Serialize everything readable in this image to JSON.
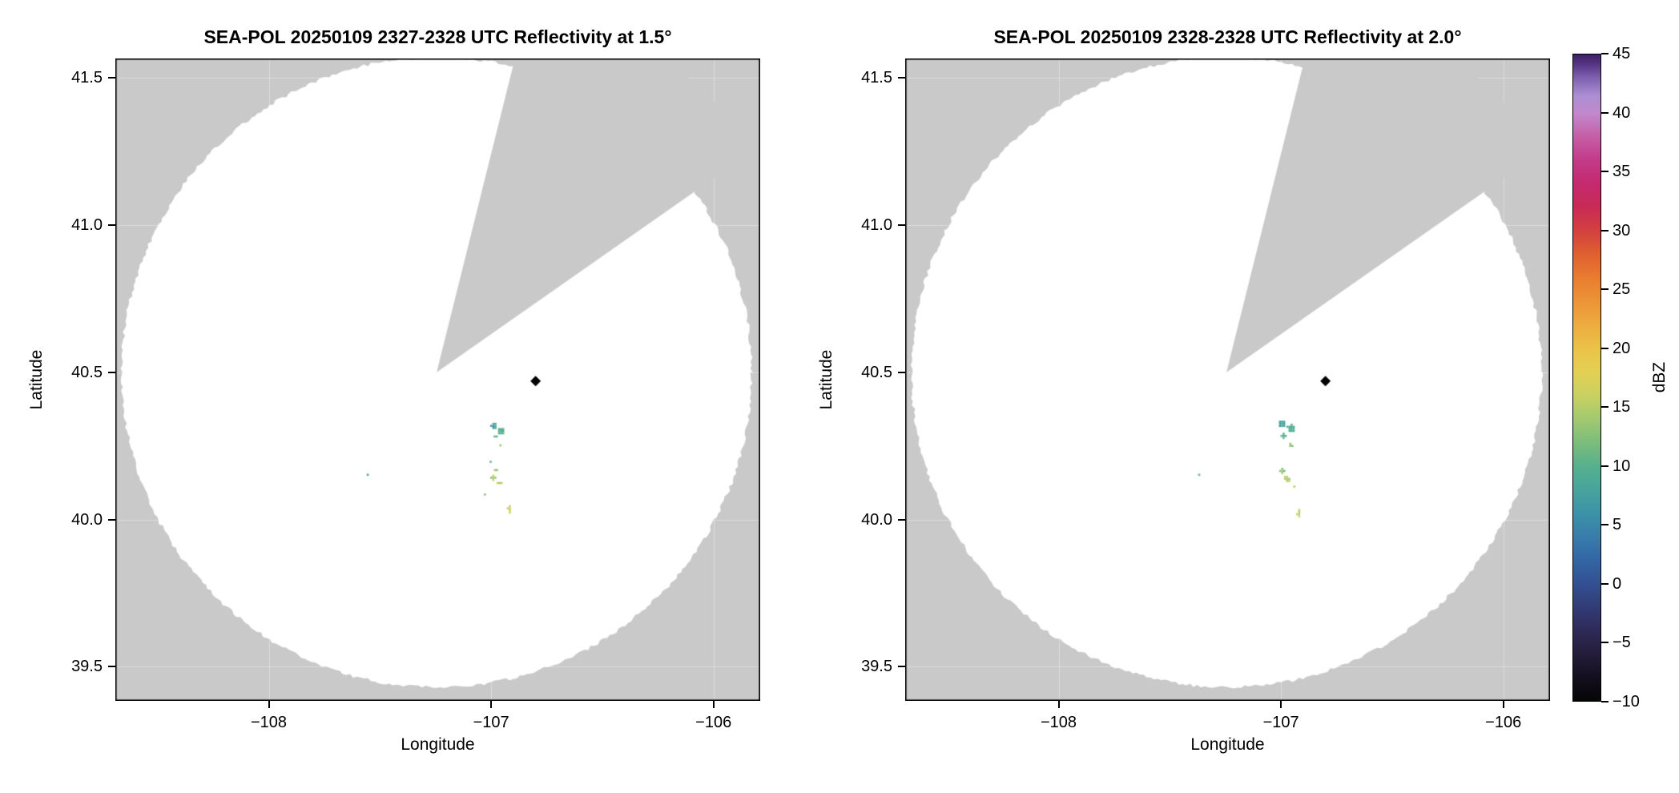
{
  "figure": {
    "background": "#ffffff",
    "panel_bg": "#c9c9c9",
    "coverage_color": "#ffffff",
    "text_color": "#000000"
  },
  "colorbar": {
    "label": "dBZ",
    "min": -10,
    "max": 45,
    "ticks": [
      {
        "v": 45,
        "label": "45"
      },
      {
        "v": 40,
        "label": "40"
      },
      {
        "v": 35,
        "label": "35"
      },
      {
        "v": 30,
        "label": "30"
      },
      {
        "v": 25,
        "label": "25"
      },
      {
        "v": 20,
        "label": "20"
      },
      {
        "v": 15,
        "label": "15"
      },
      {
        "v": 10,
        "label": "10"
      },
      {
        "v": 5,
        "label": "5"
      },
      {
        "v": 0,
        "label": "0"
      },
      {
        "v": -5,
        "label": "−5"
      },
      {
        "v": -10,
        "label": "−10"
      }
    ],
    "stops": [
      {
        "v": -10,
        "c": "#050505"
      },
      {
        "v": -8,
        "c": "#140f1e"
      },
      {
        "v": -6,
        "c": "#241d3a"
      },
      {
        "v": -4,
        "c": "#2e2a58"
      },
      {
        "v": -2,
        "c": "#323c77"
      },
      {
        "v": 0,
        "c": "#335093"
      },
      {
        "v": 2,
        "c": "#3366a5"
      },
      {
        "v": 4,
        "c": "#377dab"
      },
      {
        "v": 6,
        "c": "#3d92a8"
      },
      {
        "v": 8,
        "c": "#47a49c"
      },
      {
        "v": 10,
        "c": "#57b08d"
      },
      {
        "v": 12,
        "c": "#7cbd7c"
      },
      {
        "v": 14,
        "c": "#a3c96f"
      },
      {
        "v": 16,
        "c": "#c9d162"
      },
      {
        "v": 18,
        "c": "#e3d054"
      },
      {
        "v": 20,
        "c": "#ecc248"
      },
      {
        "v": 22,
        "c": "#edab3f"
      },
      {
        "v": 24,
        "c": "#ec9437"
      },
      {
        "v": 26,
        "c": "#e97c30"
      },
      {
        "v": 28,
        "c": "#e0602f"
      },
      {
        "v": 30,
        "c": "#d2413e"
      },
      {
        "v": 32,
        "c": "#c92a55"
      },
      {
        "v": 34,
        "c": "#c42a6e"
      },
      {
        "v": 36,
        "c": "#c33a88"
      },
      {
        "v": 38,
        "c": "#c45ea6"
      },
      {
        "v": 40,
        "c": "#c289cc"
      },
      {
        "v": 41.5,
        "c": "#ab8ed3"
      },
      {
        "v": 43,
        "c": "#7e62b0"
      },
      {
        "v": 44,
        "c": "#5b3a8c"
      },
      {
        "v": 45,
        "c": "#3c1f63"
      }
    ]
  },
  "chart_data": [
    {
      "type": "heatmap",
      "subtype": "radar-ppi",
      "title": "SEA-POL 20250109 2327-2328 UTC Reflectivity at 1.5°",
      "elevation_deg": 1.5,
      "xlabel": "Longitude",
      "ylabel": "Latitude",
      "xlim": [
        -108.69,
        -105.79
      ],
      "ylim": [
        39.384,
        41.566
      ],
      "grid": false,
      "xticks": [
        {
          "v": -108,
          "label": "−108"
        },
        {
          "v": -107,
          "label": "−107"
        },
        {
          "v": -106,
          "label": "−106"
        }
      ],
      "yticks": [
        {
          "v": 41.5,
          "label": "41.5"
        },
        {
          "v": 41.0,
          "label": "41.0"
        },
        {
          "v": 40.5,
          "label": "40.5"
        },
        {
          "v": 40.0,
          "label": "40.0"
        },
        {
          "v": 39.5,
          "label": "39.5"
        }
      ],
      "radar": {
        "lon": -107.245,
        "lat": 40.5,
        "radius_deg": 1.07,
        "blocked_sector_deg": [
          14,
          55
        ]
      },
      "marker": {
        "lon": -106.8,
        "lat": 40.47,
        "shape": "diamond",
        "color": "#000000"
      },
      "echoes": [
        {
          "lon": -106.99,
          "lat": 40.318,
          "dbz": 8,
          "w": 0.03,
          "h": 0.02
        },
        {
          "lon": -106.955,
          "lat": 40.3,
          "dbz": 10,
          "w": 0.034,
          "h": 0.026
        },
        {
          "lon": -106.975,
          "lat": 40.282,
          "dbz": 11,
          "w": 0.02,
          "h": 0.014
        },
        {
          "lon": -106.958,
          "lat": 40.252,
          "dbz": 12,
          "w": 0.016,
          "h": 0.013
        },
        {
          "lon": -107.002,
          "lat": 40.196,
          "dbz": 11,
          "w": 0.011,
          "h": 0.009
        },
        {
          "lon": -106.974,
          "lat": 40.168,
          "dbz": 13,
          "w": 0.018,
          "h": 0.013
        },
        {
          "lon": -106.99,
          "lat": 40.142,
          "dbz": 14,
          "w": 0.028,
          "h": 0.018
        },
        {
          "lon": -106.962,
          "lat": 40.124,
          "dbz": 15,
          "w": 0.02,
          "h": 0.014
        },
        {
          "lon": -107.028,
          "lat": 40.085,
          "dbz": 12,
          "w": 0.012,
          "h": 0.009
        },
        {
          "lon": -106.916,
          "lat": 40.038,
          "dbz": 16,
          "w": 0.018,
          "h": 0.03
        },
        {
          "lon": -107.555,
          "lat": 40.152,
          "dbz": 10,
          "w": 0.008,
          "h": 0.007
        }
      ]
    },
    {
      "type": "heatmap",
      "subtype": "radar-ppi",
      "title": "SEA-POL 20250109 2328-2328 UTC Reflectivity at 2.0°",
      "elevation_deg": 2.0,
      "xlabel": "Longitude",
      "ylabel": "Latitude",
      "xlim": [
        -108.69,
        -105.79
      ],
      "ylim": [
        39.384,
        41.566
      ],
      "grid": false,
      "xticks": [
        {
          "v": -108,
          "label": "−108"
        },
        {
          "v": -107,
          "label": "−107"
        },
        {
          "v": -106,
          "label": "−106"
        }
      ],
      "yticks": [
        {
          "v": 41.5,
          "label": "41.5"
        },
        {
          "v": 41.0,
          "label": "41.0"
        },
        {
          "v": 40.5,
          "label": "40.5"
        },
        {
          "v": 40.0,
          "label": "40.0"
        },
        {
          "v": 39.5,
          "label": "39.5"
        }
      ],
      "radar": {
        "lon": -107.245,
        "lat": 40.5,
        "radius_deg": 1.07,
        "blocked_sector_deg": [
          14,
          55
        ]
      },
      "marker": {
        "lon": -106.8,
        "lat": 40.47,
        "shape": "diamond",
        "color": "#000000"
      },
      "echoes": [
        {
          "lon": -106.995,
          "lat": 40.325,
          "dbz": 8,
          "w": 0.04,
          "h": 0.026
        },
        {
          "lon": -106.952,
          "lat": 40.308,
          "dbz": 9,
          "w": 0.04,
          "h": 0.03
        },
        {
          "lon": -106.988,
          "lat": 40.284,
          "dbz": 10,
          "w": 0.026,
          "h": 0.018
        },
        {
          "lon": -106.958,
          "lat": 40.25,
          "dbz": 12,
          "w": 0.022,
          "h": 0.016
        },
        {
          "lon": -106.994,
          "lat": 40.165,
          "dbz": 13,
          "w": 0.026,
          "h": 0.018
        },
        {
          "lon": -106.972,
          "lat": 40.138,
          "dbz": 15,
          "w": 0.03,
          "h": 0.022
        },
        {
          "lon": -106.94,
          "lat": 40.112,
          "dbz": 15,
          "w": 0.018,
          "h": 0.013
        },
        {
          "lon": -106.918,
          "lat": 40.018,
          "dbz": 16,
          "w": 0.02,
          "h": 0.032
        },
        {
          "lon": -107.368,
          "lat": 40.152,
          "dbz": 11,
          "w": 0.008,
          "h": 0.007
        }
      ]
    }
  ]
}
